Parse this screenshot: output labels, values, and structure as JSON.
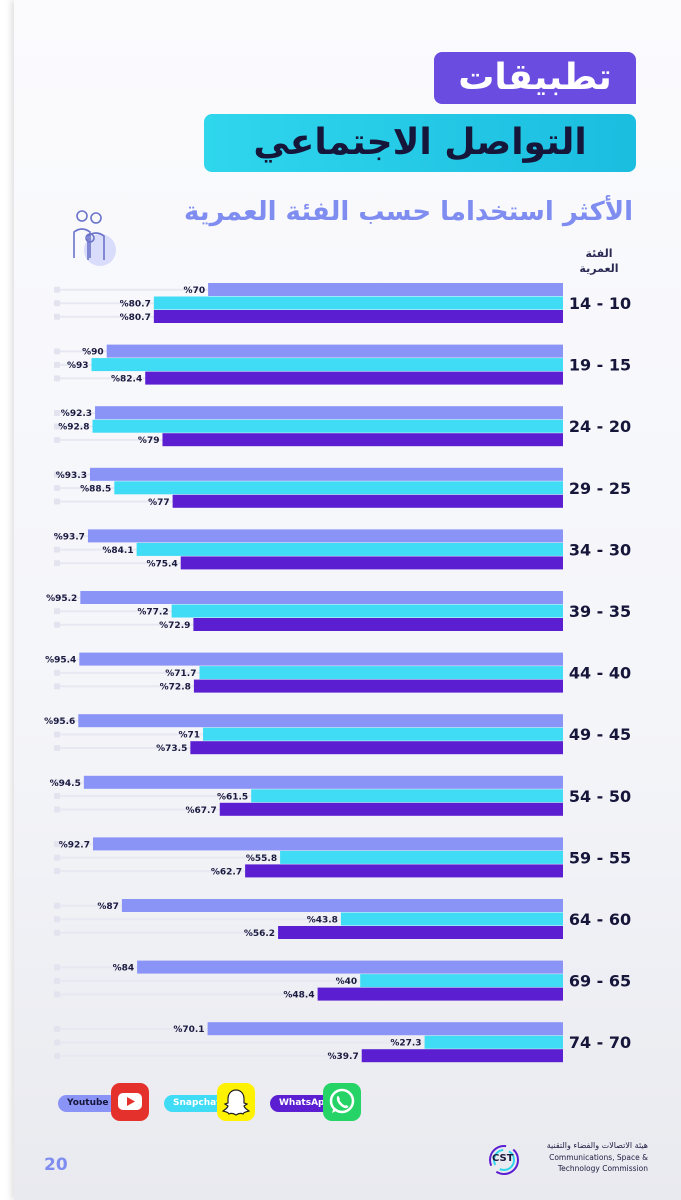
{
  "title": {
    "line1": "تطبيقات",
    "line2": "التواصل الاجتماعي",
    "subtitle": "الأكثر استخداما حسب الفئة العمرية"
  },
  "axis_header": [
    "الفئة",
    "العمرية"
  ],
  "legend": [
    {
      "name": "Youtube",
      "color": "#8a93f6",
      "icon": "youtube-icon"
    },
    {
      "name": "Snapchat",
      "color": "#40dcf6",
      "icon": "snapchat-icon"
    },
    {
      "name": "WhatsApp",
      "color": "#5b1fd1",
      "icon": "whatsapp-icon"
    }
  ],
  "page_number": "20",
  "logo": {
    "mark": "CST",
    "name_ar": "هيئة الاتصالات والفضاء والتقنية",
    "name_en_line1": "Communications, Space &",
    "name_en_line2": "Technology Commission"
  },
  "chart_data": {
    "type": "bar",
    "orientation": "horizontal",
    "title": "الأكثر استخداما حسب الفئة العمرية",
    "value_prefix": "%",
    "categories": [
      "10 - 14",
      "15 - 19",
      "20 - 24",
      "25 - 29",
      "30 - 34",
      "35 - 39",
      "40 - 44",
      "45 - 49",
      "50 - 54",
      "55 - 59",
      "60 - 64",
      "65 - 69",
      "70 - 74"
    ],
    "series": [
      {
        "name": "Youtube",
        "color": "#8a93f6",
        "values": [
          70,
          90,
          92.3,
          93.3,
          93.7,
          95.2,
          95.4,
          95.6,
          94.5,
          92.7,
          87,
          84,
          70.1
        ]
      },
      {
        "name": "Snapchat",
        "color": "#40dcf6",
        "values": [
          80.7,
          93,
          92.8,
          88.5,
          84.1,
          77.2,
          71.7,
          71,
          61.5,
          55.8,
          43.8,
          40,
          27.3
        ]
      },
      {
        "name": "WhatsApp",
        "color": "#5b1fd1",
        "values": [
          80.7,
          82.4,
          79,
          77,
          75.4,
          72.9,
          72.8,
          73.5,
          67.7,
          62.7,
          56.2,
          48.4,
          39.7
        ]
      }
    ],
    "xlim": [
      0,
      100
    ]
  }
}
